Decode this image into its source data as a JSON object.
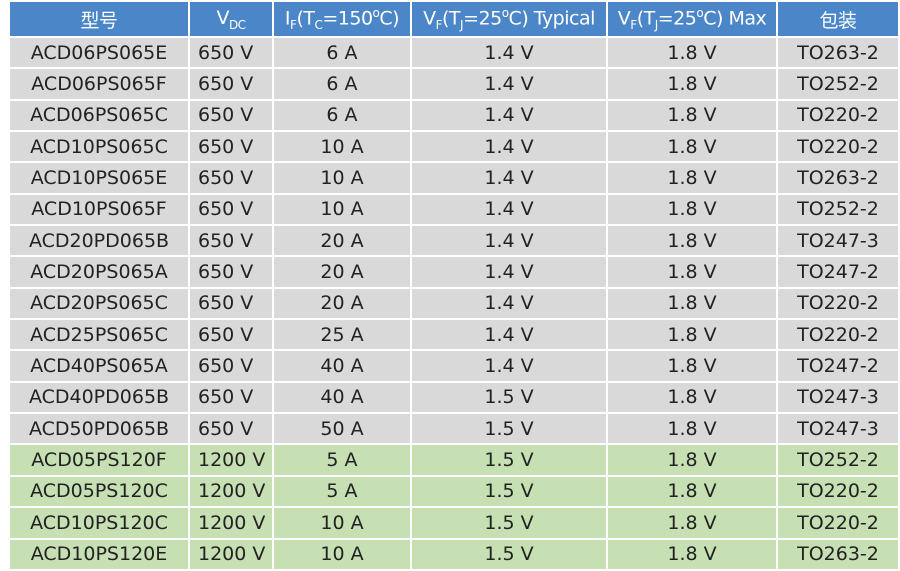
{
  "header": {
    "color": "#4a86c8",
    "cells": [
      [
        {
          "t": "型号"
        }
      ],
      [
        {
          "t": "V"
        },
        {
          "sub": "DC"
        }
      ],
      [
        {
          "t": "I"
        },
        {
          "sub": "F"
        },
        {
          "t": "(T"
        },
        {
          "sub": "C"
        },
        {
          "t": "=150"
        },
        {
          "sup": "o"
        },
        {
          "t": "C)"
        }
      ],
      [
        {
          "t": "V"
        },
        {
          "sub": "F"
        },
        {
          "t": "(T"
        },
        {
          "sub": "J"
        },
        {
          "t": "=25"
        },
        {
          "sup": "o"
        },
        {
          "t": "C) Typical"
        }
      ],
      [
        {
          "t": "V"
        },
        {
          "sub": "F"
        },
        {
          "t": "(T"
        },
        {
          "sub": "J"
        },
        {
          "t": "=25"
        },
        {
          "sup": "o"
        },
        {
          "t": "C)  Max"
        }
      ],
      [
        {
          "t": "包装"
        }
      ]
    ]
  },
  "table": {
    "sections": [
      {
        "color": "#d9d9d9",
        "rows": [
          [
            "ACD06PS065E",
            "650 V",
            "6 A",
            "1.4 V",
            "1.8 V",
            "TO263-2"
          ],
          [
            "ACD06PS065F",
            "650 V",
            "6 A",
            "1.4 V",
            "1.8 V",
            "TO252-2"
          ],
          [
            "ACD06PS065C",
            "650 V",
            "6 A",
            "1.4 V",
            "1.8 V",
            "TO220-2"
          ],
          [
            "ACD10PS065C",
            "650 V",
            "10 A",
            "1.4 V",
            "1.8 V",
            "TO220-2"
          ],
          [
            "ACD10PS065E",
            "650 V",
            "10 A",
            "1.4 V",
            "1.8 V",
            "TO263-2"
          ],
          [
            "ACD10PS065F",
            "650 V",
            "10 A",
            "1.4 V",
            "1.8 V",
            "TO252-2"
          ],
          [
            "ACD20PD065B",
            "650 V",
            "20 A",
            "1.4 V",
            "1.8 V",
            "TO247-3"
          ],
          [
            "ACD20PS065A",
            "650 V",
            "20 A",
            "1.4 V",
            "1.8 V",
            "TO247-2"
          ],
          [
            "ACD20PS065C",
            "650 V",
            "20 A",
            "1.4 V",
            "1.8 V",
            "TO220-2"
          ],
          [
            "ACD25PS065C",
            "650 V",
            "25 A",
            "1.4 V",
            "1.8 V",
            "TO220-2"
          ],
          [
            "ACD40PS065A",
            "650 V",
            "40 A",
            "1.4 V",
            "1.8 V",
            "TO247-2"
          ],
          [
            "ACD40PD065B",
            "650 V",
            "40 A",
            "1.5 V",
            "1.8 V",
            "TO247-3"
          ],
          [
            "ACD50PD065B",
            "650 V",
            "50 A",
            "1.5 V",
            "1.8 V",
            "TO247-3"
          ]
        ]
      },
      {
        "color": "#c6e0b4",
        "rows": [
          [
            "ACD05PS120F",
            "1200 V",
            "5 A",
            "1.5 V",
            "1.8 V",
            "TO252-2"
          ],
          [
            "ACD05PS120C",
            "1200 V",
            "5 A",
            "1.5 V",
            "1.8 V",
            "TO220-2"
          ],
          [
            "ACD10PS120C",
            "1200 V",
            "10 A",
            "1.5 V",
            "1.8 V",
            "TO220-2"
          ],
          [
            "ACD10PS120E",
            "1200 V",
            "10 A",
            "1.5 V",
            "1.8 V",
            "TO263-2"
          ]
        ]
      }
    ]
  }
}
